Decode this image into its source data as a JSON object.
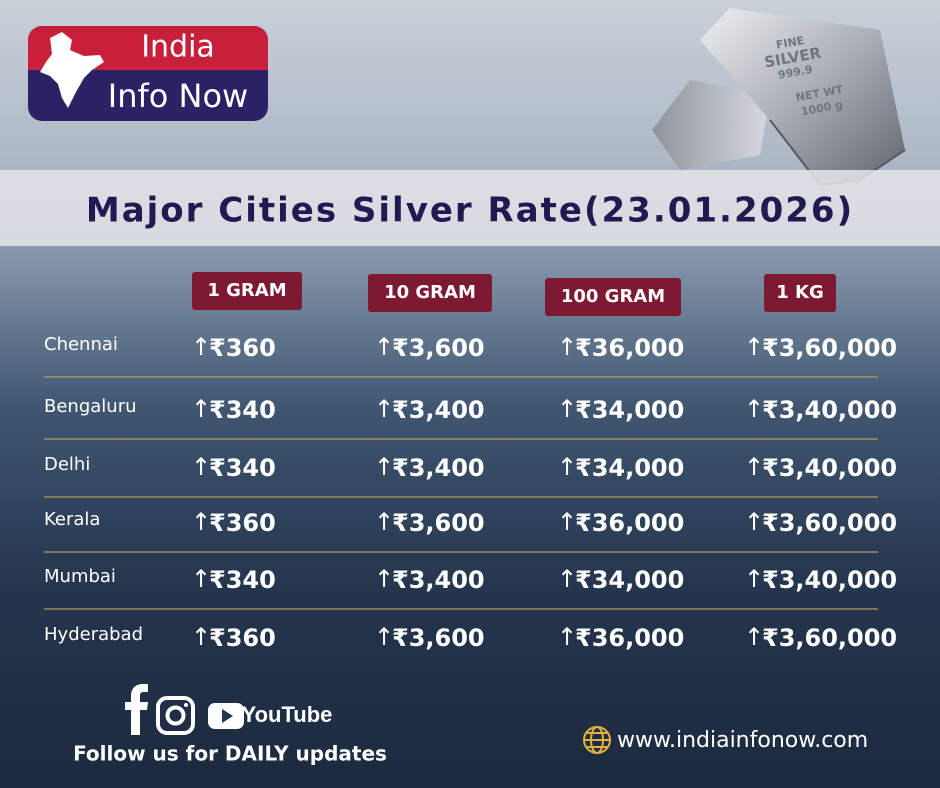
{
  "logo": {
    "line1": "India",
    "line2": "Info Now"
  },
  "silver_bar": {
    "lines": [
      "FINE",
      "SILVER",
      "999.9",
      "NET WT",
      "1000 g"
    ]
  },
  "title": "Major Cities Silver Rate(23.01.2026)",
  "table": {
    "headers": [
      "1 GRAM",
      "10 GRAM",
      "100 GRAM",
      "1 KG"
    ],
    "rows": [
      [
        "Chennai",
        "₹360",
        "₹3,600",
        "₹36,000",
        "₹3,60,000"
      ],
      [
        "Bengaluru",
        "₹340",
        "₹3,400",
        "₹34,000",
        "₹3,40,000"
      ],
      [
        "Delhi",
        "₹340",
        "₹3,400",
        "₹34,000",
        "₹3,40,000"
      ],
      [
        "Kerala",
        "₹360",
        "₹3,600",
        "₹36,000",
        "₹3,60,000"
      ],
      [
        "Mumbai",
        "₹340",
        "₹3,400",
        "₹34,000",
        "₹3,40,000"
      ],
      [
        "Hyderabad",
        "₹360",
        "₹3,600",
        "₹36,000",
        "₹3,60,000"
      ]
    ]
  },
  "footer": {
    "youtube": "YouTube",
    "follow": "Follow  us for DAILY updates",
    "website": "www.indiainfonow.com"
  }
}
